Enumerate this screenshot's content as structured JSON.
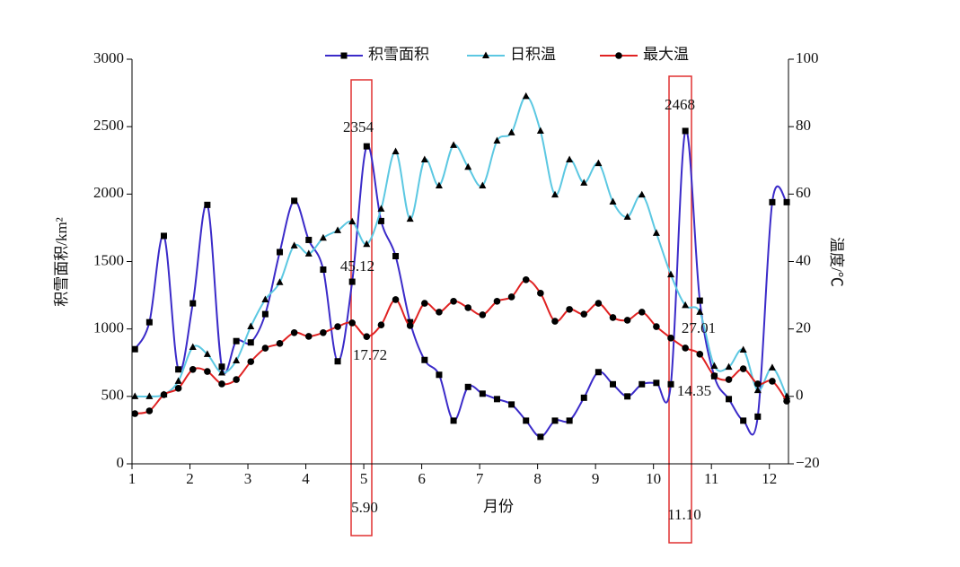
{
  "chart_data": {
    "type": "line",
    "x_label": "月份",
    "y_label": "积雪面积/km²",
    "y2_label": "温度/℃",
    "x": [
      1.05,
      1.3,
      1.55,
      1.8,
      2.05,
      2.3,
      2.55,
      2.8,
      3.05,
      3.3,
      3.55,
      3.8,
      4.05,
      4.3,
      4.55,
      4.8,
      5.05,
      5.3,
      5.55,
      5.8,
      6.05,
      6.3,
      6.55,
      6.8,
      7.05,
      7.3,
      7.55,
      7.8,
      8.05,
      8.3,
      8.55,
      8.8,
      9.05,
      9.3,
      9.55,
      9.8,
      10.05,
      10.3,
      10.55,
      10.8,
      11.05,
      11.3,
      11.55,
      11.8,
      12.05,
      12.3
    ],
    "series": [
      {
        "name": "积雪面积",
        "color": "#3b2bc9",
        "marker": "square",
        "values": [
          850,
          1050,
          1690,
          700,
          1190,
          1920,
          720,
          910,
          900,
          1110,
          1570,
          1950,
          1660,
          1440,
          760,
          1350,
          2354,
          1800,
          1540,
          1050,
          770,
          660,
          320,
          570,
          520,
          480,
          440,
          320,
          200,
          320,
          320,
          490,
          680,
          590,
          500,
          590,
          600,
          590,
          2468,
          1210,
          650,
          480,
          320,
          350,
          1940,
          1940
        ]
      },
      {
        "name": "日积温",
        "color": "#5cc8e2",
        "marker": "triangle",
        "axis": "y2",
        "values": [
          0,
          0,
          0.5,
          4.5,
          14.6,
          12.5,
          7,
          10.6,
          20.7,
          28.7,
          33.8,
          44.7,
          42.3,
          47,
          49.2,
          51.8,
          45.12,
          55.6,
          72.6,
          52.6,
          70.2,
          62.5,
          74.5,
          68,
          62.5,
          75.8,
          78.2,
          89,
          78.7,
          59.8,
          70.2,
          63.3,
          69.1,
          57.7,
          53.2,
          59.8,
          48.4,
          36.1,
          27.01,
          25,
          9,
          8.7,
          13.8,
          1.8,
          8.5,
          0
        ]
      },
      {
        "name": "最大温",
        "color": "#e02222",
        "marker": "circle",
        "axis": "y2",
        "values": [
          -5.1,
          -4.3,
          0.5,
          2.4,
          8,
          7.4,
          3.7,
          5,
          10.3,
          14.3,
          15.7,
          18.9,
          17.8,
          18.9,
          20.7,
          21.8,
          17.72,
          21.2,
          28.7,
          21,
          27.6,
          25,
          28.2,
          26.3,
          24.2,
          28.2,
          29.5,
          34.6,
          30.6,
          22.3,
          25.8,
          24.4,
          27.6,
          23.4,
          22.6,
          25,
          20.7,
          17.3,
          14.35,
          12.5,
          6.1,
          5,
          8.2,
          3.7,
          4.5,
          -1.4
        ]
      }
    ],
    "xlim": [
      1,
      12.33
    ],
    "xticks": [
      1,
      2,
      3,
      4,
      5,
      6,
      7,
      8,
      9,
      10,
      11,
      12
    ],
    "ylim": [
      0,
      3000
    ],
    "yticks": [
      0,
      500,
      1000,
      1500,
      2000,
      2500,
      3000
    ],
    "y2lim": [
      -20,
      100
    ],
    "y2ticks": [
      {
        "value": -20,
        "label": "−20"
      },
      0,
      20,
      40,
      60,
      80,
      100
    ],
    "annotations": [
      "2354",
      "45.12",
      "17.72",
      "5.90",
      "2468",
      "27.01",
      "14.35",
      "11.10"
    ]
  }
}
